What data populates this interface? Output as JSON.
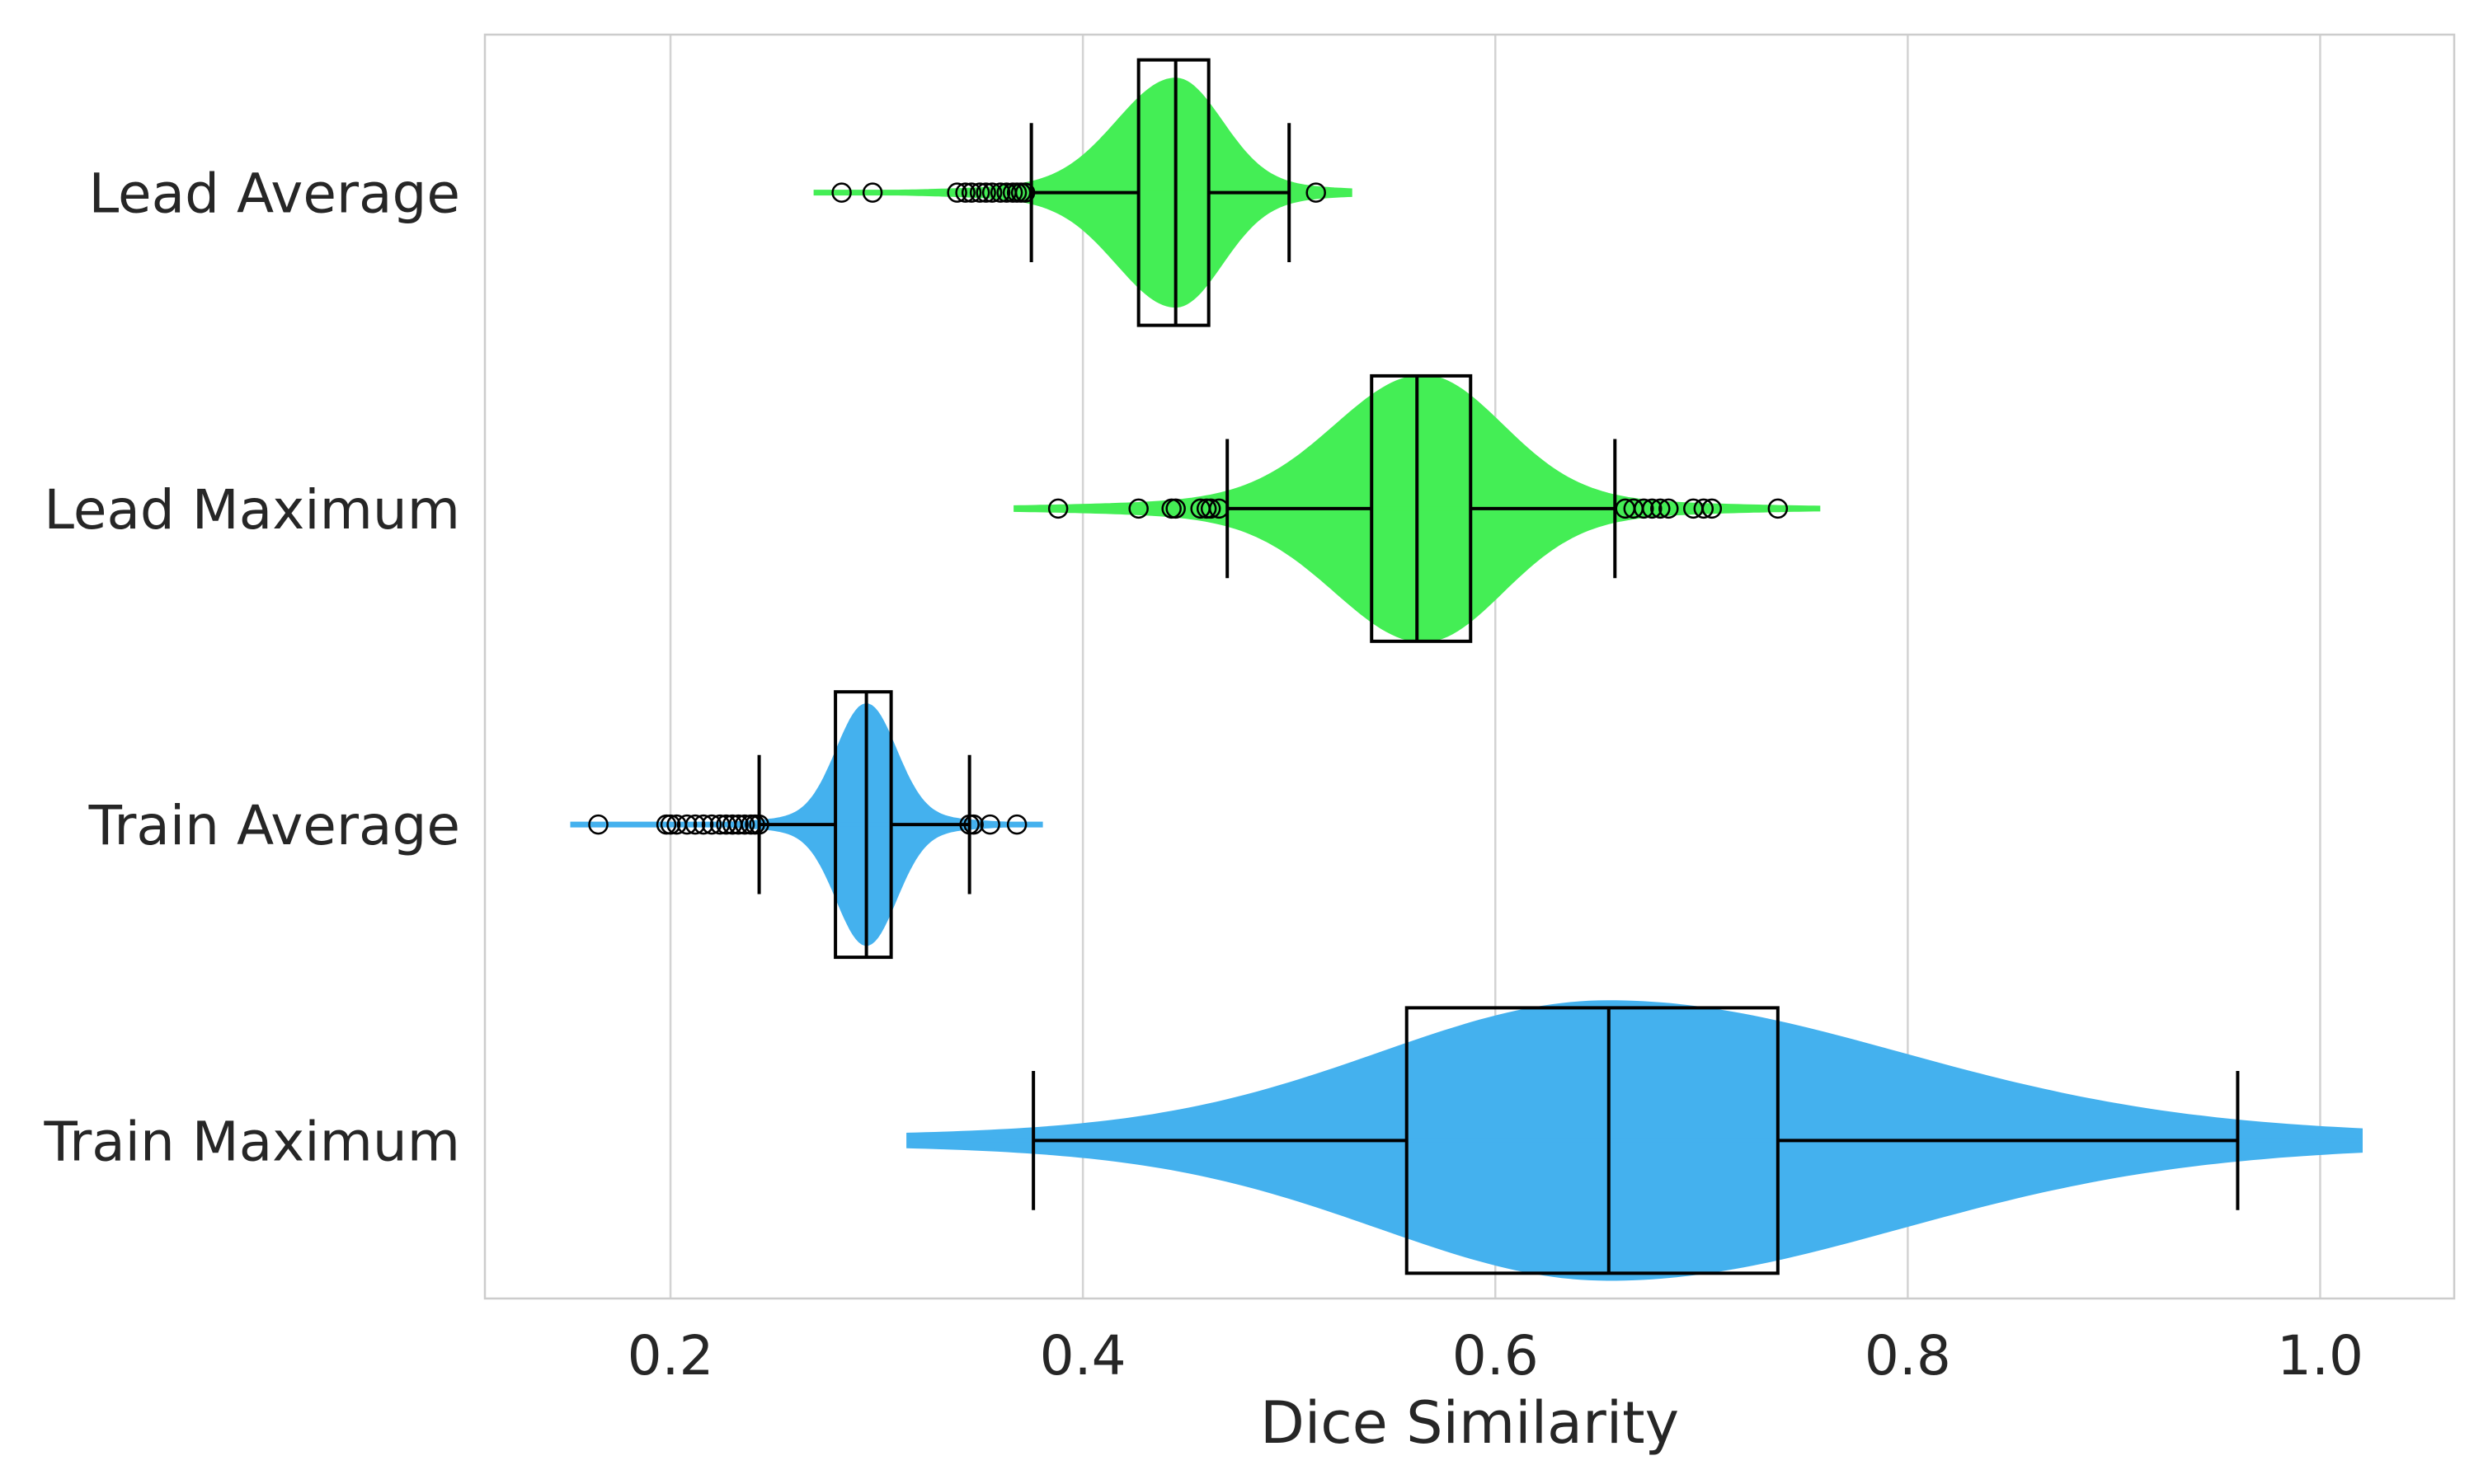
{
  "chart_data": {
    "type": "violin-box",
    "orientation": "horizontal",
    "xlabel": "Dice Similarity",
    "ylabel": "",
    "xlim": [
      0.11,
      1.065
    ],
    "xticks": [
      0.2,
      0.4,
      0.6,
      0.8,
      1.0
    ],
    "xtick_labels": [
      "0.2",
      "0.4",
      "0.6",
      "0.8",
      "1.0"
    ],
    "grid": "vertical",
    "categories": [
      "Lead Average",
      "Lead Maximum",
      "Train Average",
      "Train Maximum"
    ],
    "series": [
      {
        "name": "Lead Average",
        "color": "#44ee55",
        "violin": {
          "range": [
            0.27,
            0.53
          ],
          "center": 0.445,
          "spread_left": 0.028,
          "spread_right": 0.022,
          "max_half_width_frac": 0.36
        },
        "box": {
          "whisker_low": 0.375,
          "q1": 0.427,
          "median": 0.445,
          "q3": 0.461,
          "whisker_high": 0.5
        },
        "outliers": [
          0.283,
          0.298,
          0.339,
          0.343,
          0.346,
          0.35,
          0.353,
          0.356,
          0.36,
          0.363,
          0.366,
          0.368,
          0.37,
          0.372,
          0.513
        ]
      },
      {
        "name": "Lead Maximum",
        "color": "#44ee55",
        "violin": {
          "range": [
            0.367,
            0.757
          ],
          "center": 0.565,
          "spread_left": 0.042,
          "spread_right": 0.038,
          "max_half_width_frac": 0.42
        },
        "box": {
          "whisker_low": 0.47,
          "q1": 0.54,
          "median": 0.562,
          "q3": 0.588,
          "whisker_high": 0.658
        },
        "outliers": [
          0.388,
          0.427,
          0.443,
          0.445,
          0.457,
          0.46,
          0.462,
          0.466,
          0.663,
          0.667,
          0.672,
          0.676,
          0.68,
          0.684,
          0.696,
          0.701,
          0.705,
          0.737
        ]
      },
      {
        "name": "Train Average",
        "color": "#44b1ee",
        "violin": {
          "range": [
            0.152,
            0.38
          ],
          "center": 0.295,
          "spread_left": 0.014,
          "spread_right": 0.014,
          "max_half_width_frac": 0.38
        },
        "box": {
          "whisker_low": 0.243,
          "q1": 0.28,
          "median": 0.295,
          "q3": 0.307,
          "whisker_high": 0.345
        },
        "outliers": [
          0.165,
          0.198,
          0.2,
          0.203,
          0.208,
          0.212,
          0.216,
          0.22,
          0.224,
          0.227,
          0.23,
          0.233,
          0.236,
          0.239,
          0.241,
          0.243,
          0.345,
          0.347,
          0.355,
          0.368
        ]
      },
      {
        "name": "Train Maximum",
        "color": "#44b1ee",
        "violin": {
          "range": [
            0.315,
            1.02
          ],
          "center": 0.655,
          "spread_left": 0.11,
          "spread_right": 0.14,
          "max_half_width_frac": 0.44
        },
        "box": {
          "whisker_low": 0.376,
          "q1": 0.557,
          "median": 0.655,
          "q3": 0.737,
          "whisker_high": 0.96
        },
        "outliers": []
      }
    ]
  }
}
